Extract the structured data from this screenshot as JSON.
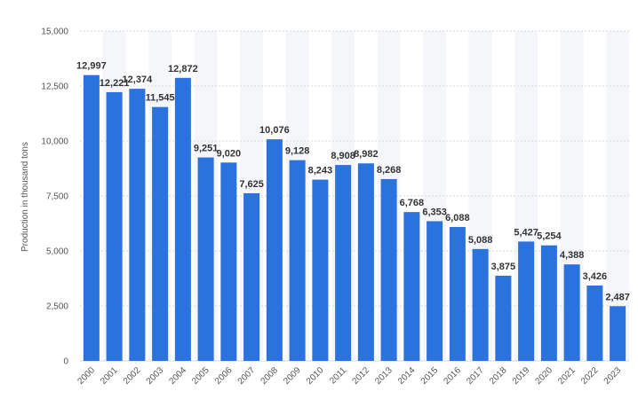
{
  "chart_data": {
    "type": "bar",
    "title": "",
    "xlabel": "",
    "ylabel": "Production in thousand tons",
    "ylim": [
      0,
      15000
    ],
    "yticks": [
      0,
      2500,
      5000,
      7500,
      10000,
      12500,
      15000
    ],
    "ytick_labels": [
      "0",
      "2,500",
      "5,000",
      "7,500",
      "10,000",
      "12,500",
      "15,000"
    ],
    "grid": true,
    "categories": [
      "2000",
      "2001",
      "2002",
      "2003",
      "2004",
      "2005",
      "2006",
      "2007",
      "2008",
      "2009",
      "2010",
      "2011",
      "2012",
      "2013",
      "2014",
      "2015",
      "2016",
      "2017",
      "2018",
      "2019",
      "2020",
      "2021",
      "2022",
      "2023"
    ],
    "values": [
      12997,
      12221,
      12374,
      11545,
      12872,
      9251,
      9020,
      7625,
      10076,
      9128,
      8243,
      8908,
      8982,
      8268,
      6768,
      6353,
      6088,
      5088,
      3875,
      5427,
      5254,
      4388,
      3426,
      2487
    ],
    "value_labels": [
      "12,997",
      "12,221",
      "12,374",
      "11,545",
      "12,872",
      "9,251",
      "9,020",
      "7,625",
      "10,076",
      "9,128",
      "8,243",
      "8,908",
      "8,982",
      "8,268",
      "6,768",
      "6,353",
      "6,088",
      "5,088",
      "3,875",
      "5,427",
      "5,254",
      "4,388",
      "3,426",
      "2,487"
    ],
    "bar_color": "#2a72de",
    "band_color": "#f4f6f9",
    "grid_color": "#d6d9de"
  }
}
